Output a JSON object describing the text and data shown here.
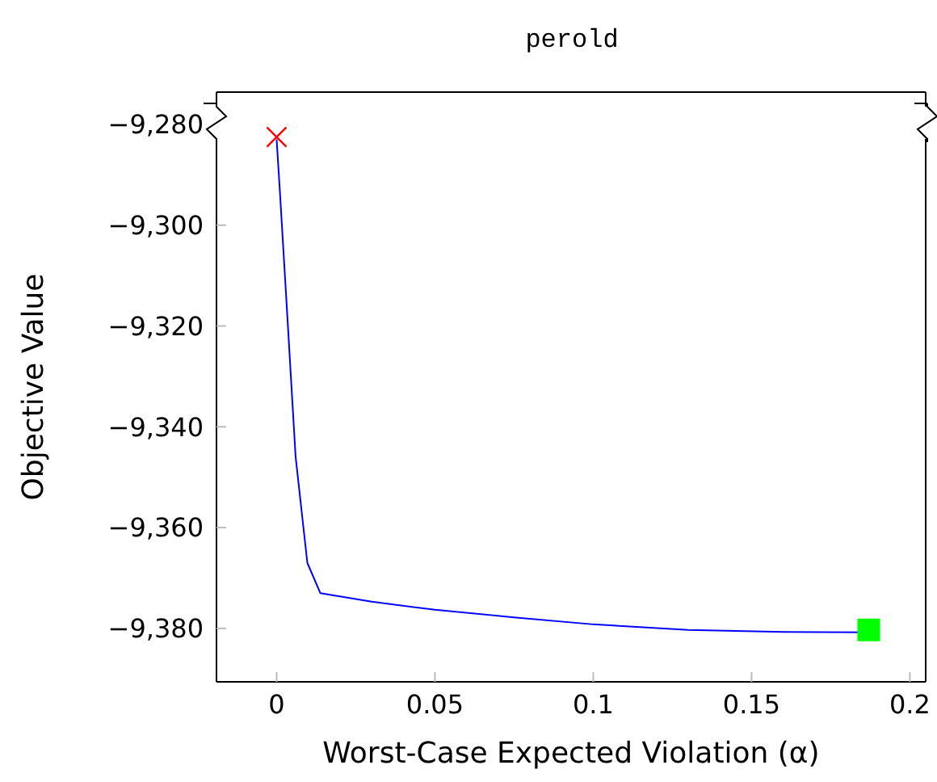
{
  "chart_data": {
    "type": "line",
    "title": "perold",
    "xlabel": "Worst-Case Expected Violation (α)",
    "ylabel": "Objective Value",
    "xlim": [
      -0.019,
      0.205
    ],
    "xticks": [
      0,
      0.05,
      0.1,
      0.15,
      0.2
    ],
    "ylim": [
      -9390.6,
      -9273.6
    ],
    "yticks": [
      {
        "value": -9380,
        "label": "−9,380"
      },
      {
        "value": -9360,
        "label": "−9,360"
      },
      {
        "value": -9340,
        "label": "−9,340"
      },
      {
        "value": -9320,
        "label": "−9,320"
      },
      {
        "value": -9300,
        "label": "−9,300"
      },
      {
        "value": -9280,
        "label": "−9,280"
      }
    ],
    "grid": false,
    "legend": false,
    "series": [
      {
        "color": "#0000ff",
        "marker": "none",
        "x": [
          0,
          0.001,
          0.003,
          0.006,
          0.0097,
          0.0138,
          0.03,
          0.05,
          0.075,
          0.1,
          0.13,
          0.16,
          0.187
        ],
        "values": [
          -9283,
          -9293,
          -9314,
          -9346,
          -9367,
          -9373,
          -9374.7,
          -9376.3,
          -9377.8,
          -9379.2,
          -9380.3,
          -9380.7,
          -9380.8
        ]
      },
      {
        "type": "scatter",
        "color": "#ff0000",
        "marker": "cross",
        "x": [
          0
        ],
        "values": [
          -9282.5
        ]
      },
      {
        "type": "scatter",
        "color": "#00ff00",
        "marker": "square",
        "x": [
          0.187
        ],
        "values": [
          -9380.3
        ]
      }
    ]
  }
}
